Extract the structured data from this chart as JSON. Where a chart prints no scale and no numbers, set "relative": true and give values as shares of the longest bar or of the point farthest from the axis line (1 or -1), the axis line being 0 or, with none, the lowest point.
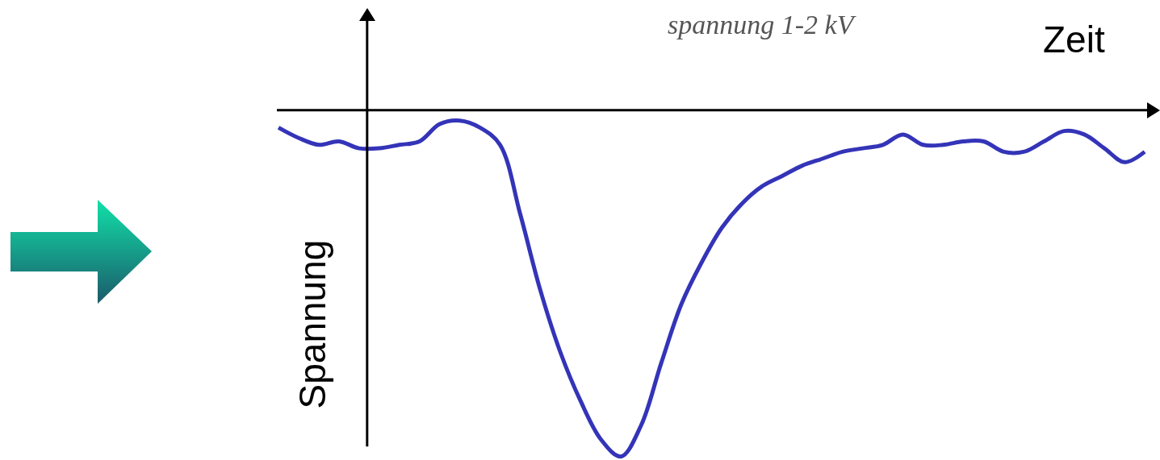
{
  "chart_data": {
    "type": "line",
    "relative": true,
    "xlabel": "Zeit",
    "ylabel": "Spannung",
    "annotations": [
      "spannung 1-2 kV"
    ],
    "categories": [
      null,
      null,
      null,
      null,
      null,
      null,
      null,
      null,
      null,
      null,
      null,
      null,
      null,
      null,
      null,
      null,
      null,
      null,
      null,
      null,
      null,
      null,
      null,
      null,
      null,
      null,
      null,
      null,
      null,
      null,
      null,
      null,
      null,
      null,
      null,
      null,
      null,
      null,
      null,
      null,
      null,
      null,
      null,
      null
    ],
    "series": [
      {
        "color": "#3434b8",
        "values": [
          -0.05,
          -0.08,
          -0.1,
          -0.09,
          -0.11,
          -0.11,
          -0.1,
          -0.09,
          -0.04,
          -0.03,
          -0.05,
          -0.1,
          -0.3,
          -0.52,
          -0.7,
          -0.84,
          -0.95,
          -1,
          -0.91,
          -0.73,
          -0.56,
          -0.44,
          -0.34,
          -0.27,
          -0.22,
          -0.19,
          -0.16,
          -0.14,
          -0.12,
          -0.11,
          -0.1,
          -0.07,
          -0.1,
          -0.1,
          -0.09,
          -0.09,
          -0.12,
          -0.12,
          -0.09,
          -0.06,
          -0.07,
          -0.11,
          -0.15,
          -0.12
        ]
      }
    ],
    "grid": false,
    "marker": "none",
    "line_style": "solid"
  }
}
